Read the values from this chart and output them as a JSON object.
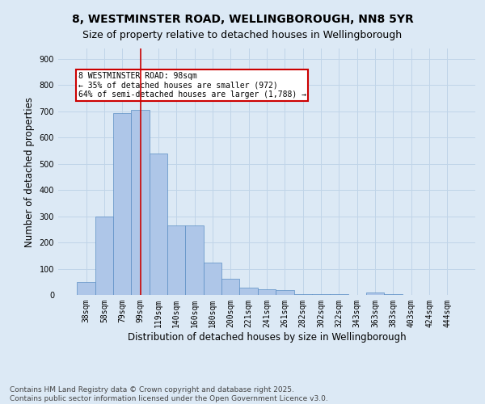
{
  "title_line1": "8, WESTMINSTER ROAD, WELLINGBOROUGH, NN8 5YR",
  "title_line2": "Size of property relative to detached houses in Wellingborough",
  "xlabel": "Distribution of detached houses by size in Wellingborough",
  "ylabel": "Number of detached properties",
  "categories": [
    "38sqm",
    "58sqm",
    "79sqm",
    "99sqm",
    "119sqm",
    "140sqm",
    "160sqm",
    "180sqm",
    "200sqm",
    "221sqm",
    "241sqm",
    "261sqm",
    "282sqm",
    "302sqm",
    "322sqm",
    "343sqm",
    "363sqm",
    "383sqm",
    "403sqm",
    "424sqm",
    "444sqm"
  ],
  "values": [
    48,
    300,
    693,
    706,
    538,
    265,
    265,
    122,
    62,
    28,
    22,
    17,
    4,
    3,
    2,
    0,
    8,
    2,
    0,
    0,
    1
  ],
  "bar_color": "#aec6e8",
  "bar_edge_color": "#5b8ec4",
  "bar_edge_width": 0.5,
  "vline_x": 3,
  "vline_color": "#cc0000",
  "annotation_text": "8 WESTMINSTER ROAD: 98sqm\n← 35% of detached houses are smaller (972)\n64% of semi-detached houses are larger (1,788) →",
  "annotation_box_color": "#ffffff",
  "annotation_box_edge_color": "#cc0000",
  "ylim": [
    0,
    940
  ],
  "yticks": [
    0,
    100,
    200,
    300,
    400,
    500,
    600,
    700,
    800,
    900
  ],
  "grid_color": "#c0d4e8",
  "bg_color": "#dce9f5",
  "footer_line1": "Contains HM Land Registry data © Crown copyright and database right 2025.",
  "footer_line2": "Contains public sector information licensed under the Open Government Licence v3.0.",
  "title_fontsize": 10,
  "subtitle_fontsize": 9,
  "tick_fontsize": 7,
  "label_fontsize": 8.5,
  "footer_fontsize": 6.5
}
